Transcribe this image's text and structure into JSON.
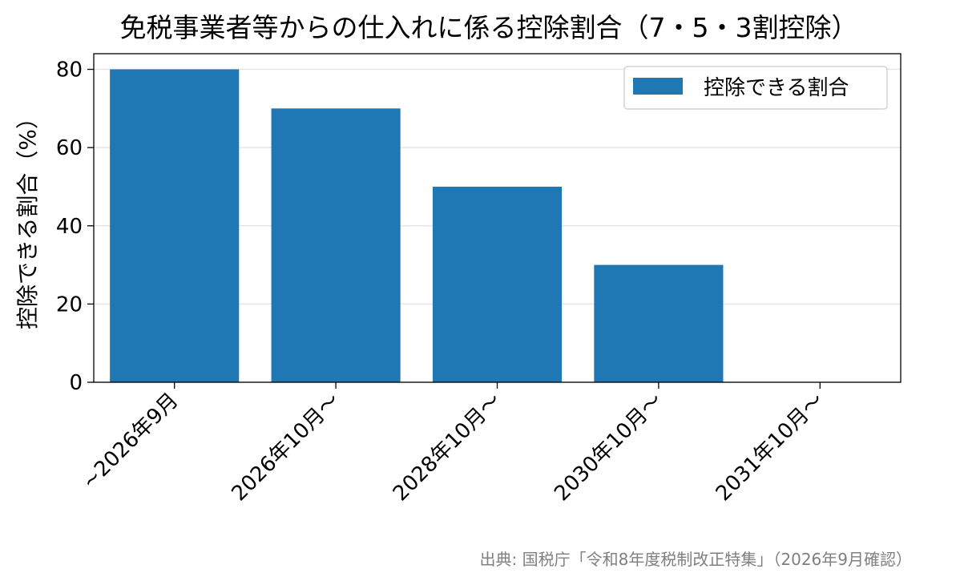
{
  "chart_data": {
    "type": "bar",
    "title": "免税事業者等からの仕入れに係る控除割合（7・5・3割控除）",
    "categories": [
      "~2026年9月",
      "2026年10月～",
      "2028年10月～",
      "2030年10月～",
      "2031年10月～"
    ],
    "series": [
      {
        "name": "控除できる割合",
        "values": [
          80,
          70,
          50,
          30,
          0
        ],
        "color": "#1f77b4"
      }
    ],
    "xlabel": "",
    "ylabel": "控除できる割合（%）",
    "ylim": [
      0,
      84
    ],
    "yticks": [
      0,
      20,
      40,
      60,
      80
    ],
    "grid": "y",
    "legend": "top-right"
  },
  "source_note": "出典: 国税庁「令和8年度税制改正特集」（2026年9月確認）"
}
